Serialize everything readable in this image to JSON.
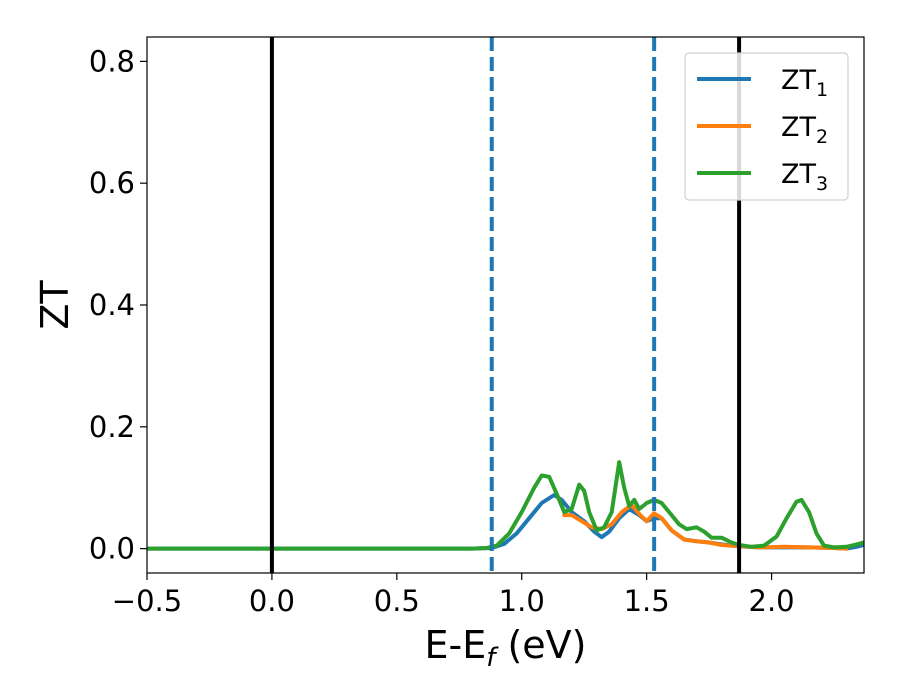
{
  "chart_data": {
    "type": "line",
    "title": "",
    "xlabel": {
      "main": "E-E",
      "sub": "f",
      "unit": " (eV)"
    },
    "ylabel": "ZT",
    "xlim": [
      -0.5,
      2.37
    ],
    "ylim": [
      -0.04,
      0.84
    ],
    "xticks": [
      -0.5,
      0.0,
      0.5,
      1.0,
      1.5,
      2.0
    ],
    "xtick_labels": [
      "−0.5",
      "0.0",
      "0.5",
      "1.0",
      "1.5",
      "2.0"
    ],
    "yticks": [
      0.0,
      0.2,
      0.4,
      0.6,
      0.8
    ],
    "ytick_labels": [
      "0.0",
      "0.2",
      "0.4",
      "0.6",
      "0.8"
    ],
    "grid": false,
    "legend_position": "top-right",
    "vlines": [
      {
        "x": 0.0,
        "color": "#000000",
        "style": "solid"
      },
      {
        "x": 1.87,
        "color": "#000000",
        "style": "solid"
      },
      {
        "x": 0.88,
        "color": "#1f77b4",
        "style": "dashed"
      },
      {
        "x": 1.53,
        "color": "#1f77b4",
        "style": "dashed"
      }
    ],
    "series": [
      {
        "name": "ZT",
        "name_sub": "1",
        "color": "#1f77b4",
        "points": [
          [
            -0.5,
            0
          ],
          [
            0.8,
            0
          ],
          [
            0.88,
            0.001
          ],
          [
            0.93,
            0.008
          ],
          [
            0.98,
            0.025
          ],
          [
            1.03,
            0.05
          ],
          [
            1.08,
            0.075
          ],
          [
            1.13,
            0.088
          ],
          [
            1.16,
            0.08
          ],
          [
            1.2,
            0.06
          ],
          [
            1.25,
            0.045
          ],
          [
            1.29,
            0.028
          ],
          [
            1.32,
            0.019
          ],
          [
            1.35,
            0.028
          ],
          [
            1.39,
            0.05
          ],
          [
            1.43,
            0.065
          ],
          [
            1.47,
            0.055
          ],
          [
            1.5,
            0.045
          ],
          [
            1.53,
            0.05
          ],
          [
            1.56,
            0.05
          ],
          [
            1.6,
            0.03
          ],
          [
            1.65,
            0.015
          ],
          [
            1.7,
            0.012
          ],
          [
            1.75,
            0.01
          ],
          [
            1.8,
            0.007
          ],
          [
            1.87,
            0.004
          ],
          [
            1.95,
            0.002
          ],
          [
            2.05,
            0.002
          ],
          [
            2.15,
            0.002
          ],
          [
            2.25,
            0.001
          ],
          [
            2.3,
            0.0
          ],
          [
            2.34,
            0.003
          ],
          [
            2.37,
            0.006
          ]
        ]
      },
      {
        "name": "ZT",
        "name_sub": "2",
        "color": "#ff7f0e",
        "points": [
          [
            1.17,
            0.055
          ],
          [
            1.2,
            0.055
          ],
          [
            1.24,
            0.045
          ],
          [
            1.28,
            0.035
          ],
          [
            1.32,
            0.032
          ],
          [
            1.36,
            0.04
          ],
          [
            1.4,
            0.06
          ],
          [
            1.44,
            0.072
          ],
          [
            1.47,
            0.057
          ],
          [
            1.5,
            0.045
          ],
          [
            1.53,
            0.058
          ],
          [
            1.56,
            0.05
          ],
          [
            1.6,
            0.03
          ],
          [
            1.65,
            0.015
          ],
          [
            1.7,
            0.012
          ],
          [
            1.75,
            0.01
          ],
          [
            1.8,
            0.006
          ],
          [
            1.87,
            0.004
          ],
          [
            1.95,
            0.002
          ],
          [
            2.05,
            0.003
          ],
          [
            2.15,
            0.002
          ],
          [
            2.25,
            0.001
          ],
          [
            2.3,
            0.0
          ]
        ]
      },
      {
        "name": "ZT",
        "name_sub": "3",
        "color": "#2ca02c",
        "points": [
          [
            -0.5,
            0
          ],
          [
            0.8,
            0
          ],
          [
            0.86,
            0.001
          ],
          [
            0.9,
            0.005
          ],
          [
            0.95,
            0.025
          ],
          [
            1.0,
            0.06
          ],
          [
            1.05,
            0.1
          ],
          [
            1.08,
            0.12
          ],
          [
            1.11,
            0.118
          ],
          [
            1.14,
            0.09
          ],
          [
            1.17,
            0.06
          ],
          [
            1.2,
            0.065
          ],
          [
            1.23,
            0.105
          ],
          [
            1.25,
            0.095
          ],
          [
            1.27,
            0.06
          ],
          [
            1.3,
            0.03
          ],
          [
            1.33,
            0.035
          ],
          [
            1.36,
            0.06
          ],
          [
            1.39,
            0.142
          ],
          [
            1.41,
            0.1
          ],
          [
            1.43,
            0.07
          ],
          [
            1.45,
            0.08
          ],
          [
            1.47,
            0.065
          ],
          [
            1.5,
            0.075
          ],
          [
            1.53,
            0.08
          ],
          [
            1.56,
            0.075
          ],
          [
            1.6,
            0.055
          ],
          [
            1.63,
            0.04
          ],
          [
            1.66,
            0.032
          ],
          [
            1.7,
            0.035
          ],
          [
            1.73,
            0.028
          ],
          [
            1.76,
            0.018
          ],
          [
            1.8,
            0.018
          ],
          [
            1.84,
            0.01
          ],
          [
            1.87,
            0.006
          ],
          [
            1.92,
            0.003
          ],
          [
            1.97,
            0.005
          ],
          [
            2.02,
            0.02
          ],
          [
            2.06,
            0.05
          ],
          [
            2.1,
            0.077
          ],
          [
            2.12,
            0.08
          ],
          [
            2.15,
            0.06
          ],
          [
            2.18,
            0.025
          ],
          [
            2.21,
            0.005
          ],
          [
            2.25,
            0.002
          ],
          [
            2.3,
            0.003
          ],
          [
            2.34,
            0.007
          ],
          [
            2.37,
            0.01
          ]
        ]
      }
    ]
  }
}
